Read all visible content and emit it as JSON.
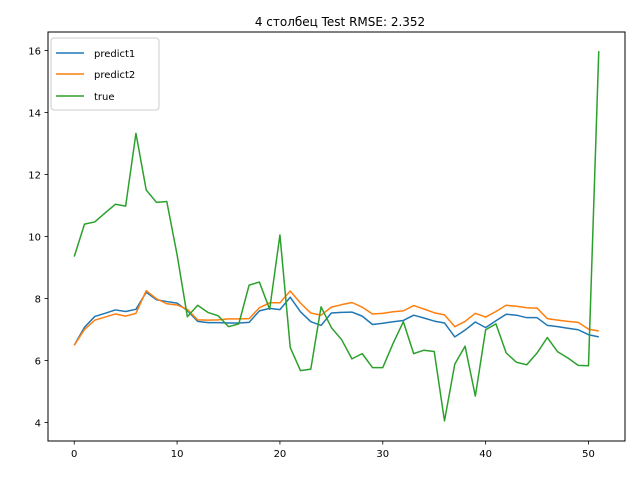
{
  "chart_data": {
    "type": "line",
    "title": "4 столбец Test RMSE: 2.352",
    "xlabel": "",
    "ylabel": "",
    "xlim": [
      -2.55,
      53.55
    ],
    "ylim": [
      3.4,
      16.6
    ],
    "xticks": [
      0,
      10,
      20,
      30,
      40,
      50
    ],
    "yticks": [
      4,
      6,
      8,
      10,
      12,
      14,
      16
    ],
    "grid": false,
    "legend_position": "upper left",
    "x": [
      0,
      1,
      2,
      3,
      4,
      5,
      6,
      7,
      8,
      9,
      10,
      11,
      12,
      13,
      14,
      15,
      16,
      17,
      18,
      19,
      20,
      21,
      22,
      23,
      24,
      25,
      26,
      27,
      28,
      29,
      30,
      31,
      32,
      33,
      34,
      35,
      36,
      37,
      38,
      39,
      40,
      41,
      42,
      43,
      44,
      45,
      46,
      47,
      48,
      49,
      50,
      51
    ],
    "series": [
      {
        "name": "predict1",
        "color": "#1f77b4",
        "values": [
          6.49,
          7.07,
          7.42,
          7.52,
          7.63,
          7.58,
          7.65,
          8.2,
          7.96,
          7.9,
          7.85,
          7.61,
          7.26,
          7.22,
          7.22,
          7.21,
          7.21,
          7.23,
          7.6,
          7.68,
          7.64,
          8.04,
          7.57,
          7.25,
          7.13,
          7.53,
          7.55,
          7.56,
          7.43,
          7.16,
          7.2,
          7.25,
          7.29,
          7.46,
          7.37,
          7.27,
          7.21,
          6.76,
          6.98,
          7.24,
          7.06,
          7.28,
          7.49,
          7.46,
          7.38,
          7.38,
          7.13,
          7.09,
          7.04,
          6.99,
          6.83,
          6.76
        ]
      },
      {
        "name": "predict2",
        "color": "#ff7f0e",
        "values": [
          6.49,
          7.0,
          7.3,
          7.4,
          7.5,
          7.43,
          7.52,
          8.25,
          7.99,
          7.83,
          7.79,
          7.65,
          7.31,
          7.3,
          7.31,
          7.34,
          7.34,
          7.35,
          7.7,
          7.86,
          7.86,
          8.24,
          7.85,
          7.53,
          7.46,
          7.72,
          7.8,
          7.87,
          7.72,
          7.5,
          7.52,
          7.57,
          7.6,
          7.77,
          7.66,
          7.54,
          7.47,
          7.09,
          7.26,
          7.52,
          7.4,
          7.58,
          7.78,
          7.75,
          7.7,
          7.69,
          7.35,
          7.3,
          7.26,
          7.23,
          7.01,
          6.95
        ]
      },
      {
        "name": "true",
        "color": "#2ca02c",
        "values": [
          9.35,
          10.4,
          10.47,
          10.76,
          11.04,
          10.98,
          13.33,
          11.5,
          11.1,
          11.13,
          9.41,
          7.41,
          7.78,
          7.55,
          7.44,
          7.09,
          7.18,
          8.43,
          8.53,
          7.65,
          10.05,
          6.42,
          5.67,
          5.72,
          7.73,
          7.06,
          6.67,
          6.05,
          6.22,
          5.77,
          5.77,
          6.55,
          7.25,
          6.22,
          6.33,
          6.29,
          4.05,
          5.88,
          6.46,
          4.85,
          6.99,
          7.18,
          6.24,
          5.94,
          5.86,
          6.24,
          6.74,
          6.28,
          6.08,
          5.84,
          5.83,
          15.98
        ]
      }
    ]
  }
}
